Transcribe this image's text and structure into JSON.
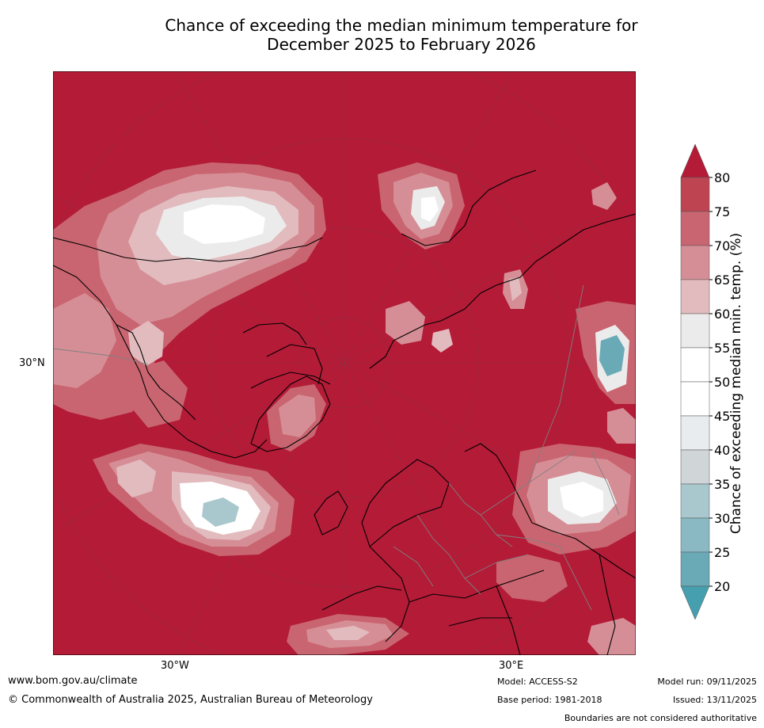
{
  "title": {
    "line1": "Chance of exceeding the median minimum temperature for",
    "line2": "December 2025 to February 2026"
  },
  "map": {
    "projection": "north-polar",
    "lat_label": "30°N",
    "lon_labels": [
      "30°W",
      "30°E"
    ],
    "background_color": "#b31b37",
    "coastline_color": "#000000",
    "border_color": "#808080"
  },
  "colorbar": {
    "label": "Chance of exceeding median min. temp. (%)",
    "ticks": [
      "80",
      "75",
      "70",
      "65",
      "60",
      "55",
      "50",
      "45",
      "40",
      "35",
      "30",
      "25",
      "20"
    ],
    "bands": [
      {
        "color": "#b31b37"
      },
      {
        "color": "#be4452"
      },
      {
        "color": "#c96570"
      },
      {
        "color": "#d68e96"
      },
      {
        "color": "#e2bbbe"
      },
      {
        "color": "#ecebeb"
      },
      {
        "color": "#ffffff"
      },
      {
        "color": "#ffffff"
      },
      {
        "color": "#e8ecef"
      },
      {
        "color": "#d0d5d8"
      },
      {
        "color": "#a9c8cd"
      },
      {
        "color": "#8ab9c4"
      },
      {
        "color": "#6aaab7"
      },
      {
        "color": "#469fae"
      }
    ]
  },
  "footer": {
    "url": "www.bom.gov.au/climate",
    "copyright": "© Commonwealth of Australia 2025, Australian Bureau of Meteorology",
    "model": "Model: ACCESS-S2",
    "base_period": "Base period: 1981-2018",
    "model_run": "Model run: 09/11/2025",
    "issued": "Issued: 13/11/2025",
    "disclaimer": "Boundaries are not considered authoritative"
  }
}
